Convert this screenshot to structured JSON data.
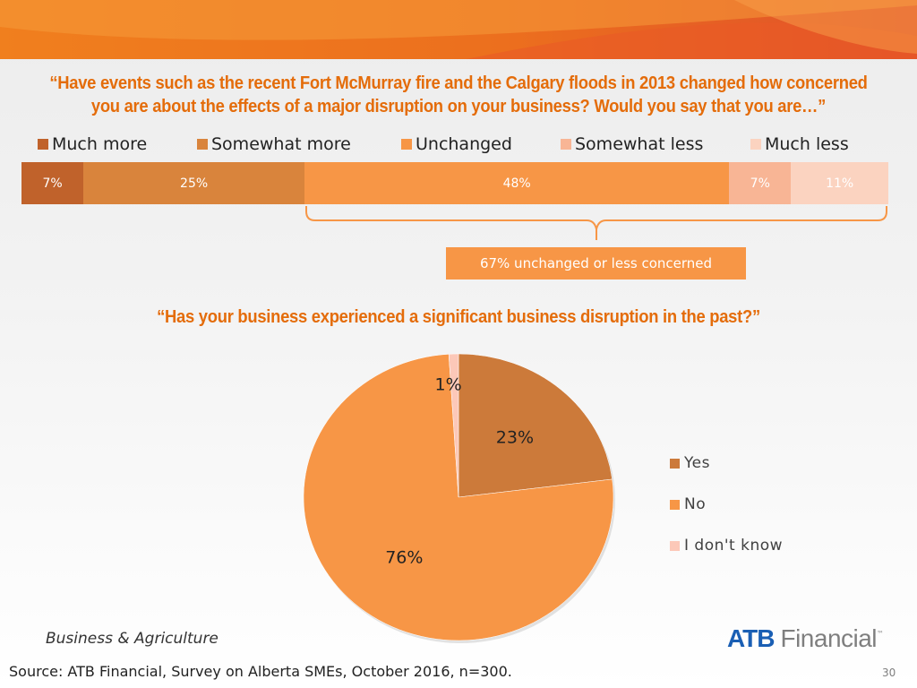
{
  "question1": "“Have events such as the recent Fort McMurray fire and the Calgary floods in 2013 changed how concerned you are about the effects of a major disruption on your business?  Would you say that you are…”",
  "question2": "“Has your business experienced a significant business disruption in the past?”",
  "callout": "67% unchanged or less concerned",
  "footer": {
    "section": "Business & Agriculture",
    "source": "Source:  ATB Financial, Survey on Alberta SMEs, October 2016, n=300.",
    "page": "30"
  },
  "logo": {
    "brand": "ATB",
    "text": "Financial",
    "tm": "™"
  },
  "colors": {
    "accent": "#e46c0a",
    "logo_blue": "#1a5fb4"
  },
  "chart_data": [
    {
      "type": "bar",
      "orientation": "horizontal-stacked-100",
      "categories": [
        "Much more",
        "Somewhat more",
        "Unchanged",
        "Somewhat less",
        "Much less"
      ],
      "values": [
        7,
        25,
        48,
        7,
        11
      ],
      "labels": [
        "7%",
        "25%",
        "48%",
        "7%",
        "11%"
      ],
      "colors": [
        "#c0622b",
        "#d9843c",
        "#f79646",
        "#f8b595",
        "#fbd3c0"
      ],
      "legend": "top"
    },
    {
      "type": "pie",
      "categories": [
        "Yes",
        "No",
        "I don't know"
      ],
      "values": [
        23,
        76,
        1
      ],
      "labels": [
        "23%",
        "76%",
        "1%"
      ],
      "colors": [
        "#cc7a3a",
        "#f79646",
        "#fcc8b8"
      ],
      "legend": "right"
    }
  ]
}
